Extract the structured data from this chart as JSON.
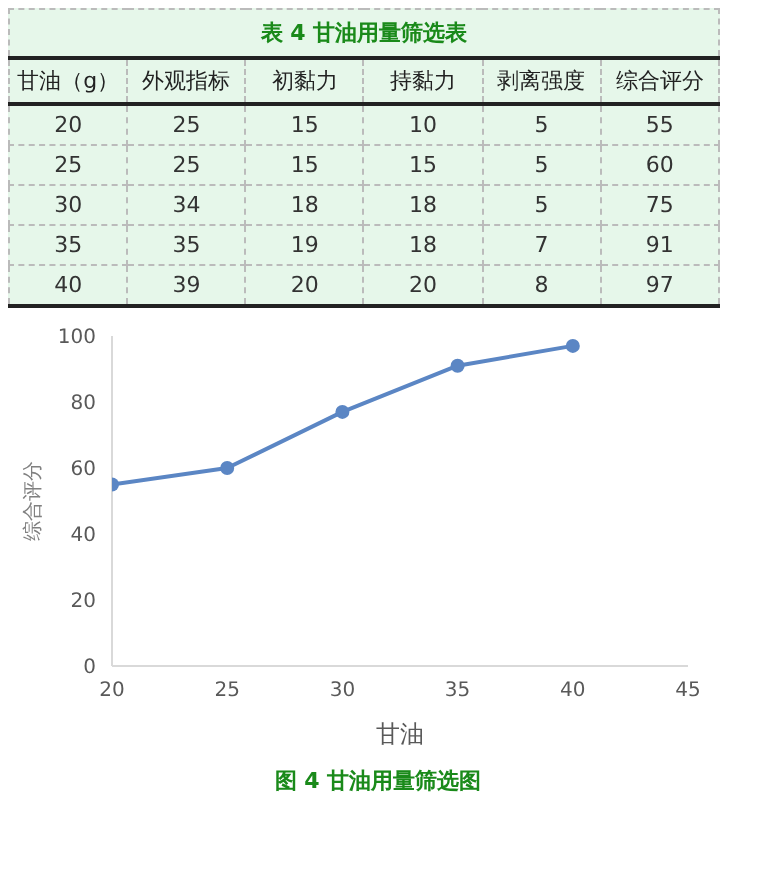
{
  "chart_data": [
    {
      "type": "heatmap",
      "title": "表 4 甘油用量筛选表",
      "ylabel": "甘油（g）",
      "categories": [
        "外观指标",
        "初黏力",
        "持黏力",
        "剥离强度",
        "综合评分"
      ],
      "y_categories": [
        "20",
        "25",
        "30",
        "35",
        "40"
      ],
      "data_labels": true,
      "cells": [
        [
          25,
          15,
          10,
          5,
          55
        ],
        [
          25,
          15,
          15,
          5,
          60
        ],
        [
          34,
          18,
          18,
          5,
          75
        ],
        [
          35,
          19,
          18,
          7,
          91
        ],
        [
          39,
          20,
          20,
          8,
          97
        ]
      ]
    },
    {
      "type": "line",
      "xlabel": "甘油",
      "ylabel": "综合评分",
      "annotations": [
        "图 4 甘油用量筛选图"
      ],
      "x": [
        20,
        25,
        30,
        35,
        40
      ],
      "series": [
        {
          "color": "#5b86c4",
          "values": [
            55,
            60,
            77,
            91,
            97
          ]
        }
      ],
      "xlim": [
        20,
        45
      ],
      "xticks": [
        20,
        25,
        30,
        35,
        40,
        45
      ],
      "ylim": [
        0,
        100
      ],
      "yticks": [
        0,
        20,
        40,
        60,
        80,
        100
      ],
      "grid": false,
      "legend": false,
      "marker": "circle",
      "line_style": "solid"
    }
  ]
}
